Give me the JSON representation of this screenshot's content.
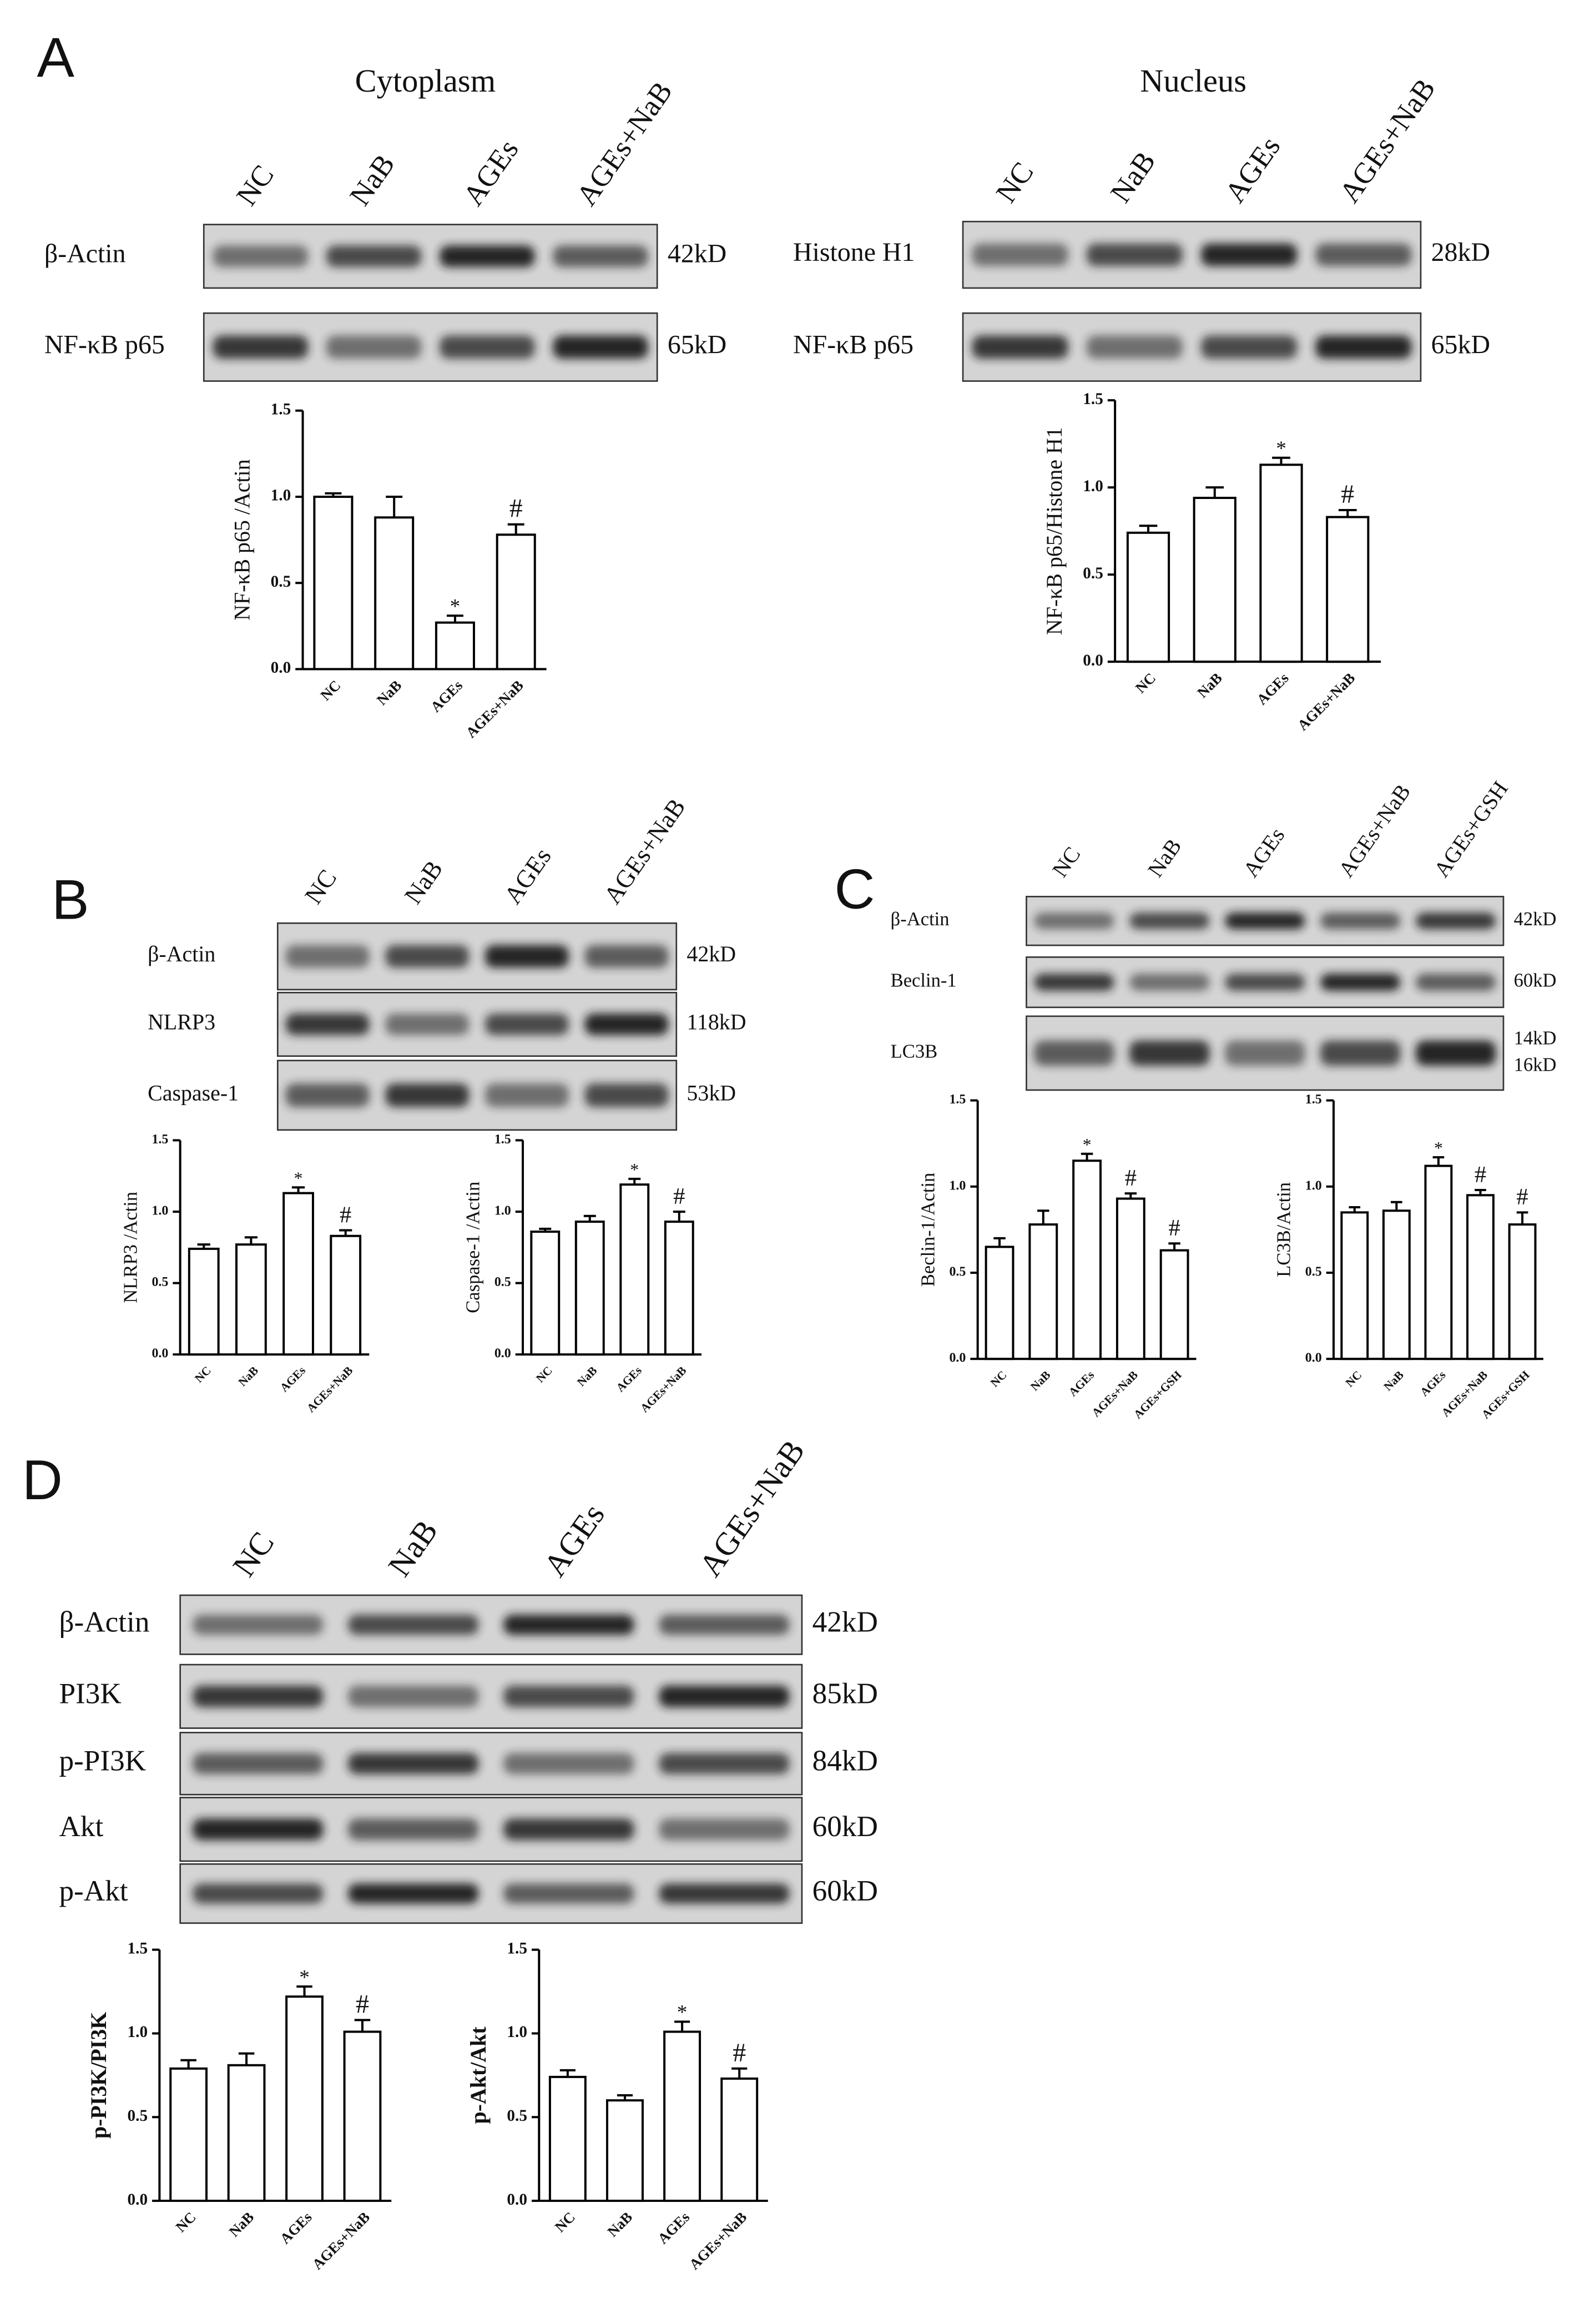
{
  "panel_labels": [
    "A",
    "B",
    "C",
    "D"
  ],
  "blots": [
    {
      "title": "Cytoplasm",
      "lanes": [
        "NC",
        "NaB",
        "AGEs",
        "AGEs+NaB"
      ],
      "rows": [
        {
          "label": "β-Actin",
          "sizes": [
            "42kD"
          ]
        },
        {
          "label": "NF-κB p65",
          "sizes": [
            "65kD"
          ]
        }
      ]
    },
    {
      "title": "Nucleus",
      "lanes": [
        "NC",
        "NaB",
        "AGEs",
        "AGEs+NaB"
      ],
      "rows": [
        {
          "label": "Histone H1",
          "sizes": [
            "28kD"
          ]
        },
        {
          "label": "NF-κB p65",
          "sizes": [
            "65kD"
          ]
        }
      ]
    },
    {
      "lanes": [
        "NC",
        "NaB",
        "AGEs",
        "AGEs+NaB"
      ],
      "rows": [
        {
          "label": "β-Actin",
          "sizes": [
            "42kD"
          ]
        },
        {
          "label": "NLRP3",
          "sizes": [
            "118kD"
          ]
        },
        {
          "label": "Caspase-1",
          "sizes": [
            "53kD"
          ]
        }
      ]
    },
    {
      "lanes": [
        "NC",
        "NaB",
        "AGEs",
        "AGEs+NaB",
        "AGEs+GSH"
      ],
      "rows": [
        {
          "label": "β-Actin",
          "sizes": [
            "42kD"
          ]
        },
        {
          "label": "Beclin-1",
          "sizes": [
            "60kD"
          ]
        },
        {
          "label": "LC3B",
          "sizes": [
            "14kD",
            "16kD"
          ]
        }
      ]
    },
    {
      "lanes": [
        "NC",
        "NaB",
        "AGEs",
        "AGEs+NaB"
      ],
      "rows": [
        {
          "label": "β-Actin",
          "sizes": [
            "42kD"
          ]
        },
        {
          "label": "PI3K",
          "sizes": [
            "85kD"
          ]
        },
        {
          "label": "p-PI3K",
          "sizes": [
            "84kD"
          ]
        },
        {
          "label": "Akt",
          "sizes": [
            "60kD"
          ]
        },
        {
          "label": "p-Akt",
          "sizes": [
            "60kD"
          ]
        }
      ]
    }
  ],
  "chart_data": [
    {
      "type": "bar",
      "y_label": "NF-κB p65 /Actin",
      "categories": [
        "NC",
        "NaB",
        "AGEs",
        "AGEs+NaB"
      ],
      "values": [
        1.0,
        0.88,
        0.27,
        0.78
      ],
      "errors": [
        0.02,
        0.12,
        0.04,
        0.06
      ],
      "marks": [
        null,
        null,
        "*",
        "#"
      ],
      "ylim": [
        0,
        1.5
      ],
      "yticks": [
        {
          "value": 0,
          "label": "0.0"
        },
        {
          "value": 0.5,
          "label": "0.5"
        },
        {
          "value": 1,
          "label": "1.0"
        },
        {
          "value": 1.5,
          "label": "1.5"
        }
      ]
    },
    {
      "type": "bar",
      "y_label": "NF-κB p65/Histone H1",
      "categories": [
        "NC",
        "NaB",
        "AGEs",
        "AGEs+NaB"
      ],
      "values": [
        0.74,
        0.94,
        1.13,
        0.83
      ],
      "errors": [
        0.04,
        0.06,
        0.04,
        0.04
      ],
      "marks": [
        null,
        null,
        "*",
        "#"
      ],
      "ylim": [
        0,
        1.5
      ],
      "yticks": [
        {
          "value": 0,
          "label": "0.0"
        },
        {
          "value": 0.5,
          "label": "0.5"
        },
        {
          "value": 1,
          "label": "1.0"
        },
        {
          "value": 1.5,
          "label": "1.5"
        }
      ]
    },
    {
      "type": "bar",
      "y_label": "NLRP3 /Actin",
      "categories": [
        "NC",
        "NaB",
        "AGEs",
        "AGEs+NaB"
      ],
      "values": [
        0.74,
        0.77,
        1.13,
        0.83
      ],
      "errors": [
        0.03,
        0.05,
        0.04,
        0.04
      ],
      "marks": [
        null,
        null,
        "*",
        "#"
      ],
      "ylim": [
        0,
        1.5
      ],
      "yticks": [
        {
          "value": 0,
          "label": "0.0"
        },
        {
          "value": 0.5,
          "label": "0.5"
        },
        {
          "value": 1,
          "label": "1.0"
        },
        {
          "value": 1.5,
          "label": "1.5"
        }
      ]
    },
    {
      "type": "bar",
      "y_label": "Caspase-1 /Actin",
      "categories": [
        "NC",
        "NaB",
        "AGEs",
        "AGEs+NaB"
      ],
      "values": [
        0.86,
        0.93,
        1.19,
        0.93
      ],
      "errors": [
        0.02,
        0.04,
        0.04,
        0.07
      ],
      "marks": [
        null,
        null,
        "*",
        "#"
      ],
      "ylim": [
        0,
        1.5
      ],
      "yticks": [
        {
          "value": 0,
          "label": "0.0"
        },
        {
          "value": 0.5,
          "label": "0.5"
        },
        {
          "value": 1,
          "label": "1.0"
        },
        {
          "value": 1.5,
          "label": "1.5"
        }
      ]
    },
    {
      "type": "bar",
      "y_label": "Beclin-1/Actin",
      "categories": [
        "NC",
        "NaB",
        "AGEs",
        "AGEs+NaB",
        "AGEs+GSH"
      ],
      "values": [
        0.65,
        0.78,
        1.15,
        0.93,
        0.63
      ],
      "errors": [
        0.05,
        0.08,
        0.04,
        0.03,
        0.04
      ],
      "marks": [
        null,
        null,
        "*",
        "#",
        "#"
      ],
      "ylim": [
        0,
        1.5
      ],
      "yticks": [
        {
          "value": 0,
          "label": "0.0"
        },
        {
          "value": 0.5,
          "label": "0.5"
        },
        {
          "value": 1,
          "label": "1.0"
        },
        {
          "value": 1.5,
          "label": "1.5"
        }
      ]
    },
    {
      "type": "bar",
      "y_label": "LC3B/Actin",
      "categories": [
        "NC",
        "NaB",
        "AGEs",
        "AGEs+NaB",
        "AGEs+GSH"
      ],
      "values": [
        0.85,
        0.86,
        1.12,
        0.95,
        0.78
      ],
      "errors": [
        0.03,
        0.05,
        0.05,
        0.03,
        0.07
      ],
      "marks": [
        null,
        null,
        "*",
        "#",
        "#"
      ],
      "ylim": [
        0,
        1.5
      ],
      "yticks": [
        {
          "value": 0,
          "label": "0.0"
        },
        {
          "value": 0.5,
          "label": "0.5"
        },
        {
          "value": 1,
          "label": "1.0"
        },
        {
          "value": 1.5,
          "label": "1.5"
        }
      ]
    },
    {
      "type": "bar",
      "y_label": "p-PI3K/PI3K",
      "categories": [
        "NC",
        "NaB",
        "AGEs",
        "AGEs+NaB"
      ],
      "values": [
        0.79,
        0.81,
        1.22,
        1.01
      ],
      "errors": [
        0.05,
        0.07,
        0.06,
        0.07
      ],
      "marks": [
        null,
        null,
        "*",
        "#"
      ],
      "ylim": [
        0,
        1.5
      ],
      "yticks": [
        {
          "value": 0,
          "label": "0.0"
        },
        {
          "value": 0.5,
          "label": "0.5"
        },
        {
          "value": 1,
          "label": "1.0"
        },
        {
          "value": 1.5,
          "label": "1.5"
        }
      ]
    },
    {
      "type": "bar",
      "y_label": "p-Akt/Akt",
      "categories": [
        "NC",
        "NaB",
        "AGEs",
        "AGEs+NaB"
      ],
      "values": [
        0.74,
        0.6,
        1.01,
        0.73
      ],
      "errors": [
        0.04,
        0.03,
        0.06,
        0.06
      ],
      "marks": [
        null,
        null,
        "*",
        "#"
      ],
      "ylim": [
        0,
        1.5
      ],
      "yticks": [
        {
          "value": 0,
          "label": "0.0"
        },
        {
          "value": 0.5,
          "label": "0.5"
        },
        {
          "value": 1,
          "label": "1.0"
        },
        {
          "value": 1.5,
          "label": "1.5"
        }
      ]
    }
  ]
}
